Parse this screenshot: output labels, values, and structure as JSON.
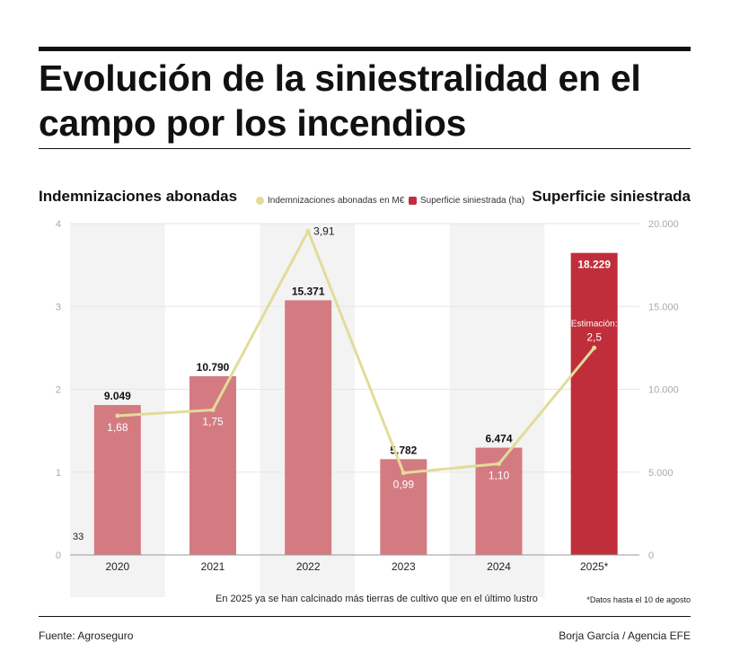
{
  "title": "Evolución de la siniestralidad en el campo por los incendios",
  "left_subtitle": "Indemnizaciones abonadas",
  "right_subtitle": "Superficie siniestrada",
  "note": "En 2025 ya se han calcinado más tierras de cultivo que en el último lustro",
  "footnote": "*Datos hasta el 10 de agosto",
  "source": "Fuente: Agroseguro",
  "credit": "Borja García / Agencia EFE",
  "chart_data": {
    "type": "bar",
    "categories": [
      "2020",
      "2021",
      "2022",
      "2023",
      "2024",
      "2025*"
    ],
    "series": [
      {
        "name": "Superficie siniestrada (ha)",
        "type": "bar",
        "axis": "right",
        "values": [
          9049,
          10790,
          15371,
          5782,
          6474,
          18229
        ],
        "labels": [
          "9.049",
          "10.790",
          "15.371",
          "5.782",
          "6.474",
          "18.229"
        ]
      },
      {
        "name": "Indemnizaciones abonadas en M€",
        "type": "line",
        "axis": "left",
        "values": [
          1.68,
          1.75,
          3.91,
          0.99,
          1.1,
          2.5
        ],
        "labels": [
          "1,68",
          "1,75",
          "3,91",
          "0,99",
          "1,10",
          "2,5"
        ]
      }
    ],
    "left_axis": {
      "ylim": [
        0,
        4
      ],
      "ticks": [
        "0",
        "1",
        "2",
        "3",
        "4"
      ]
    },
    "right_axis": {
      "ylim": [
        0,
        20000
      ],
      "ticks": [
        "0",
        "5.000",
        "10.000",
        "15.000",
        "20.000"
      ]
    },
    "annotations": [
      "Estimación:",
      "33"
    ],
    "legend_placement": "top-center",
    "colors": {
      "bar": "#d47b82",
      "bar_highlight": "#bf2e3a",
      "line": "#e2dc9a",
      "band": "#f3f3f3",
      "grid": "#e6e6e6"
    }
  }
}
